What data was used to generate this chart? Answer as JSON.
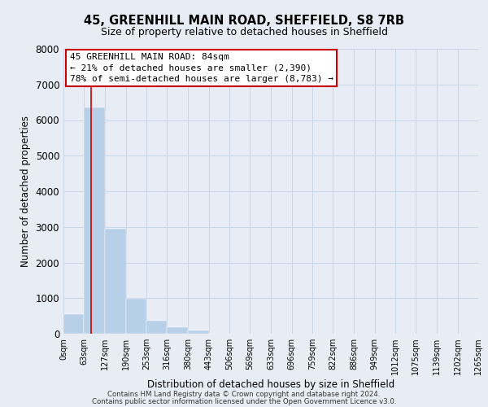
{
  "title": "45, GREENHILL MAIN ROAD, SHEFFIELD, S8 7RB",
  "subtitle": "Size of property relative to detached houses in Sheffield",
  "xlabel": "Distribution of detached houses by size in Sheffield",
  "ylabel": "Number of detached properties",
  "bar_values": [
    550,
    6350,
    2950,
    975,
    375,
    175,
    100,
    0,
    0,
    0,
    0,
    0,
    0,
    0,
    0,
    0,
    0,
    0,
    0,
    0
  ],
  "bar_edges": [
    0,
    63,
    127,
    190,
    253,
    316,
    380,
    443,
    506,
    569,
    633,
    696,
    759,
    822,
    886,
    949,
    1012,
    1075,
    1139,
    1202,
    1265
  ],
  "tick_labels": [
    "0sqm",
    "63sqm",
    "127sqm",
    "190sqm",
    "253sqm",
    "316sqm",
    "380sqm",
    "443sqm",
    "506sqm",
    "569sqm",
    "633sqm",
    "696sqm",
    "759sqm",
    "822sqm",
    "886sqm",
    "949sqm",
    "1012sqm",
    "1075sqm",
    "1139sqm",
    "1202sqm",
    "1265sqm"
  ],
  "bar_color": "#b8cfe8",
  "property_line_x": 84,
  "property_line_color": "#cc0000",
  "annotation_line1": "45 GREENHILL MAIN ROAD: 84sqm",
  "annotation_line2": "← 21% of detached houses are smaller (2,390)",
  "annotation_line3": "78% of semi-detached houses are larger (8,783) →",
  "annotation_box_facecolor": "white",
  "annotation_box_edgecolor": "#cc0000",
  "grid_color": "#c8d4e8",
  "background_color": "#e8ecf5",
  "ylim": [
    0,
    8000
  ],
  "yticks": [
    0,
    1000,
    2000,
    3000,
    4000,
    5000,
    6000,
    7000,
    8000
  ],
  "footer_line1": "Contains HM Land Registry data © Crown copyright and database right 2024.",
  "footer_line2": "Contains public sector information licensed under the Open Government Licence v3.0."
}
